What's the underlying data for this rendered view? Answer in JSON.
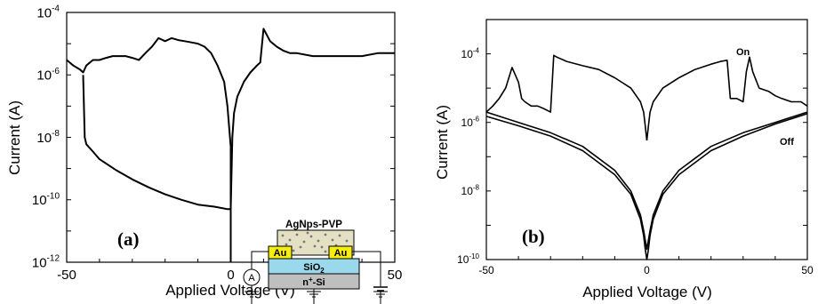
{
  "chart_data": [
    {
      "panel": "(a)",
      "type": "line",
      "xlabel": "Applied Voltage (V)",
      "ylabel": "Current (A)",
      "xlim": [
        -50,
        50
      ],
      "ylim": [
        1e-12,
        0.0001
      ],
      "yscale": "log",
      "x_ticks": [
        "-50",
        "0",
        "50"
      ],
      "y_ticks": [
        {
          "base": "10",
          "exp": "-12",
          "value": 1e-12
        },
        {
          "base": "10",
          "exp": "-10",
          "value": 1e-10
        },
        {
          "base": "10",
          "exp": "-8",
          "value": 1e-08
        },
        {
          "base": "10",
          "exp": "-6",
          "value": 1e-06
        },
        {
          "base": "10",
          "exp": "-4",
          "value": 0.0001
        }
      ],
      "grid": false,
      "series": [
        {
          "x": [
            -50,
            -48,
            -46,
            -45,
            -44,
            -42,
            -40,
            -38,
            -36,
            -34,
            -32,
            -30,
            -28,
            -26,
            -24,
            -22,
            -20,
            -18,
            -16,
            -14,
            -12,
            -10,
            -8,
            -6,
            -4,
            -2,
            -1,
            0
          ],
          "y": [
            3e-06,
            2e-06,
            1.5e-06,
            1.2e-06,
            2e-06,
            3e-06,
            3e-06,
            3.5e-06,
            4e-06,
            4e-06,
            4e-06,
            3.5e-06,
            3e-06,
            5e-06,
            8e-06,
            1.5e-05,
            1.2e-05,
            1.5e-05,
            1.3e-05,
            1.2e-05,
            1.1e-05,
            1e-05,
            8e-06,
            5e-06,
            2e-06,
            6e-07,
            1e-07,
            5e-09
          ]
        },
        {
          "x": [
            -45,
            -44.5,
            -44,
            -42,
            -40,
            -35,
            -30,
            -25,
            -20,
            -15,
            -10,
            -5,
            -1,
            0
          ],
          "y": [
            1e-06,
            1e-08,
            6e-09,
            3.5e-09,
            2e-09,
            9e-10,
            4.5e-10,
            2.5e-10,
            1.5e-10,
            1e-10,
            7e-11,
            6e-11,
            5e-11,
            5e-11
          ]
        },
        {
          "x": [
            0,
            0.5,
            1,
            2,
            4,
            6,
            8,
            9,
            10,
            12,
            14,
            16,
            18,
            20,
            25,
            30,
            35,
            40,
            45,
            50
          ],
          "y": [
            5e-11,
            1e-08,
            6e-08,
            2e-07,
            6e-07,
            1.2e-06,
            2e-06,
            2.5e-06,
            3e-05,
            1.2e-05,
            8e-06,
            6e-06,
            5e-06,
            5e-06,
            4e-06,
            4e-06,
            4e-06,
            4e-06,
            5e-06,
            5e-06
          ]
        }
      ]
    },
    {
      "panel": "(b)",
      "type": "line",
      "xlabel": "Applied Voltage (V)",
      "ylabel": "Current (A)",
      "xlim": [
        -50,
        50
      ],
      "ylim": [
        1e-10,
        0.001
      ],
      "yscale": "log",
      "x_ticks": [
        "-50",
        "0",
        "50"
      ],
      "y_ticks": [
        {
          "base": "10",
          "exp": "-10",
          "value": 1e-10
        },
        {
          "base": "10",
          "exp": "-8",
          "value": 1e-08
        },
        {
          "base": "10",
          "exp": "-6",
          "value": 1e-06
        },
        {
          "base": "10",
          "exp": "-4",
          "value": 0.0001
        }
      ],
      "grid": false,
      "annotations": [
        "On",
        "Off"
      ],
      "series": [
        {
          "x": [
            -50,
            -48,
            -46,
            -44,
            -42,
            -40,
            -39,
            -38,
            -36,
            -34,
            -32,
            -30,
            -29,
            -28,
            -25,
            -20,
            -15,
            -10,
            -5,
            -2,
            -1,
            -0.5,
            0
          ],
          "y": [
            2e-06,
            3e-06,
            5e-06,
            1e-05,
            4e-05,
            1.5e-05,
            5e-06,
            4e-06,
            3e-06,
            3e-06,
            2.5e-06,
            2e-06,
            9e-05,
            8e-05,
            6e-05,
            4.5e-05,
            3.5e-05,
            2e-05,
            1e-05,
            4e-06,
            2e-06,
            8e-07,
            3e-07
          ]
        },
        {
          "x": [
            0,
            0.5,
            1,
            2,
            5,
            10,
            15,
            20,
            23,
            25,
            26,
            28,
            30,
            31,
            32,
            33,
            35,
            38,
            40,
            42,
            45,
            48,
            50
          ],
          "y": [
            3e-07,
            8e-07,
            2e-06,
            4e-06,
            1e-05,
            2e-05,
            3.5e-05,
            5e-05,
            6e-05,
            6.5e-05,
            5e-06,
            5e-06,
            4e-06,
            3e-05,
            8e-05,
            3e-05,
            1e-05,
            8e-06,
            6e-06,
            5e-06,
            4e-06,
            4e-06,
            3e-06
          ]
        },
        {
          "x": [
            -50,
            -40,
            -30,
            -20,
            -10,
            -5,
            -2,
            -1,
            -0.5,
            0,
            0.5,
            1,
            2,
            5,
            10,
            20,
            30,
            40,
            50
          ],
          "y": [
            1.5e-06,
            8e-07,
            4e-07,
            1.5e-07,
            3e-08,
            8e-09,
            1.5e-09,
            5e-10,
            2e-10,
            1e-10,
            2e-10,
            5e-10,
            1.5e-09,
            8e-09,
            3e-08,
            1.5e-07,
            4e-07,
            9e-07,
            1.8e-06
          ]
        },
        {
          "x": [
            -50,
            -40,
            -30,
            -20,
            -10,
            -5,
            -2,
            -1,
            0,
            1,
            2,
            5,
            10,
            20,
            30,
            40,
            50
          ],
          "y": [
            2e-06,
            1e-06,
            5e-07,
            2e-07,
            4e-08,
            1e-08,
            2e-09,
            7e-10,
            2e-10,
            7e-10,
            2e-09,
            1e-08,
            4e-08,
            2e-07,
            5e-07,
            1e-06,
            2e-06
          ]
        }
      ]
    }
  ],
  "inset": {
    "film_label": "AgNps-PVP",
    "left_electrode": "Au",
    "right_electrode": "Au",
    "dielectric": "SiO",
    "dielectric_sub": "2",
    "substrate": "n",
    "substrate_sup": "+",
    "substrate_rest": "-Si",
    "ammeter": "A",
    "colors": {
      "film": "#e3e0c4",
      "electrode": "#f5ec10",
      "dielectric": "#9ad8ec",
      "substrate": "#bfbfbf"
    }
  }
}
